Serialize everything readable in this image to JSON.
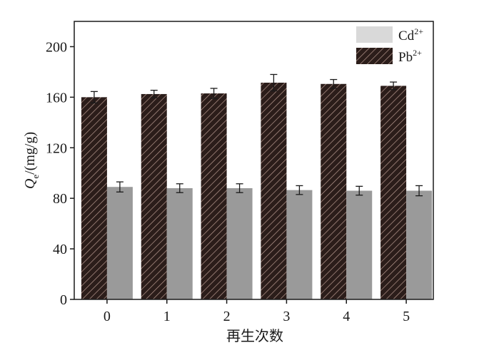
{
  "chart_data": {
    "type": "bar",
    "xlabel": "再生次数",
    "ylabel": {
      "symbol": "Q",
      "subscript": "e",
      "unit": "/(mg/g)"
    },
    "categories": [
      "0",
      "1",
      "2",
      "3",
      "4",
      "5"
    ],
    "ylim": [
      0,
      220
    ],
    "yticks": [
      "0",
      "40",
      "80",
      "120",
      "160",
      "200"
    ],
    "grid": false,
    "legend_position": "top-right",
    "series": [
      {
        "name": "Cd",
        "superscript": "2+",
        "values": [
          89,
          88,
          88,
          86.5,
          86,
          86
        ],
        "errors": [
          4,
          3.5,
          3.5,
          3.5,
          3.5,
          4
        ],
        "color": "#9a9a9a",
        "legend_color": "#d9d9d9",
        "pattern": "solid"
      },
      {
        "name": "Pb",
        "superscript": "2+",
        "values": [
          160,
          162.5,
          163,
          171.5,
          170.5,
          169
        ],
        "errors": [
          4.5,
          3,
          4,
          6.5,
          3.5,
          3
        ],
        "color": "#2b1d1a",
        "hatch_color": "#b89a90",
        "pattern": "hatch"
      }
    ]
  }
}
